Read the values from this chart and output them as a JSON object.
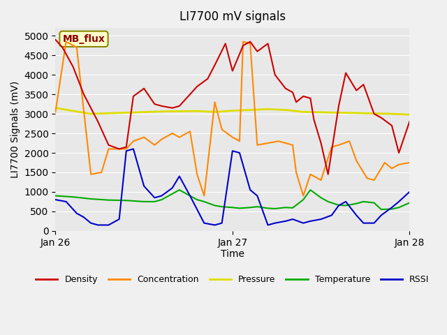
{
  "title": "LI7700 mV signals",
  "ylabel": "LI7700 Signals (mV)",
  "xlabel": "Time",
  "annotation": "MB_flux",
  "ylim": [
    0,
    5200
  ],
  "yticks": [
    0,
    500,
    1000,
    1500,
    2000,
    2500,
    3000,
    3500,
    4000,
    4500,
    5000
  ],
  "xtick_labels": [
    "Jan 26",
    "Jan 27",
    "Jan 28"
  ],
  "bg_color": "#e8e8e8",
  "legend_items": [
    {
      "label": "Density",
      "color": "#cc0000"
    },
    {
      "label": "Concentration",
      "color": "#ff8800"
    },
    {
      "label": "Pressure",
      "color": "#dddd00"
    },
    {
      "label": "Temperature",
      "color": "#00aa00"
    },
    {
      "label": "RSSI",
      "color": "#0000cc"
    }
  ],
  "density_x": [
    0,
    0.02,
    0.05,
    0.08,
    0.12,
    0.15,
    0.18,
    0.2,
    0.22,
    0.25,
    0.28,
    0.3,
    0.33,
    0.35,
    0.38,
    0.4,
    0.43,
    0.45,
    0.48,
    0.5,
    0.53,
    0.55,
    0.57,
    0.6,
    0.62,
    0.65,
    0.67,
    0.68,
    0.7,
    0.72,
    0.73,
    0.75,
    0.77,
    0.8,
    0.82,
    0.85,
    0.87,
    0.9,
    0.92,
    0.95,
    0.97,
    1.0
  ],
  "density_y": [
    4900,
    4700,
    4200,
    3500,
    2800,
    2200,
    2100,
    2150,
    3450,
    3650,
    3250,
    3200,
    3150,
    3200,
    3500,
    3700,
    3900,
    4250,
    4800,
    4100,
    4750,
    4850,
    4600,
    4800,
    4000,
    3650,
    3550,
    3300,
    3450,
    3400,
    2850,
    2250,
    1450,
    3200,
    4050,
    3600,
    3750,
    3000,
    2900,
    2700,
    2000,
    2800
  ],
  "concentration_x": [
    0,
    0.03,
    0.06,
    0.1,
    0.13,
    0.15,
    0.18,
    0.2,
    0.22,
    0.25,
    0.28,
    0.3,
    0.33,
    0.35,
    0.38,
    0.4,
    0.42,
    0.45,
    0.47,
    0.5,
    0.52,
    0.53,
    0.55,
    0.57,
    0.6,
    0.63,
    0.65,
    0.67,
    0.68,
    0.7,
    0.72,
    0.75,
    0.78,
    0.8,
    0.83,
    0.85,
    0.88,
    0.9,
    0.93,
    0.95,
    0.97,
    1.0
  ],
  "concentration_y": [
    3050,
    4850,
    4700,
    1450,
    1500,
    2100,
    2100,
    2100,
    2300,
    2400,
    2200,
    2350,
    2500,
    2400,
    2550,
    1450,
    900,
    3300,
    2600,
    2400,
    2300,
    4850,
    4800,
    2200,
    2250,
    2300,
    2250,
    2200,
    1500,
    900,
    1450,
    1300,
    2150,
    2200,
    2300,
    1800,
    1350,
    1300,
    1750,
    1600,
    1700,
    1750
  ],
  "pressure_x": [
    0,
    0.1,
    0.2,
    0.3,
    0.4,
    0.45,
    0.5,
    0.55,
    0.6,
    0.65,
    0.7,
    0.75,
    0.8,
    0.85,
    0.9,
    0.95,
    1.0
  ],
  "pressure_y": [
    3150,
    3000,
    3030,
    3060,
    3070,
    3050,
    3080,
    3100,
    3120,
    3100,
    3050,
    3040,
    3030,
    3020,
    3010,
    3000,
    2980
  ],
  "temperature_x": [
    0,
    0.05,
    0.1,
    0.15,
    0.2,
    0.25,
    0.28,
    0.3,
    0.35,
    0.38,
    0.4,
    0.42,
    0.45,
    0.47,
    0.5,
    0.52,
    0.55,
    0.57,
    0.6,
    0.62,
    0.65,
    0.67,
    0.7,
    0.72,
    0.75,
    0.77,
    0.8,
    0.82,
    0.85,
    0.87,
    0.9,
    0.92,
    0.95,
    0.97,
    1.0
  ],
  "temperature_y": [
    900,
    870,
    820,
    790,
    780,
    750,
    750,
    800,
    1050,
    900,
    800,
    750,
    650,
    620,
    600,
    580,
    600,
    620,
    580,
    570,
    600,
    590,
    800,
    1050,
    850,
    750,
    660,
    650,
    700,
    750,
    720,
    550,
    560,
    600,
    720
  ],
  "rssi_x": [
    0,
    0.03,
    0.06,
    0.08,
    0.1,
    0.12,
    0.15,
    0.18,
    0.2,
    0.22,
    0.25,
    0.28,
    0.3,
    0.33,
    0.35,
    0.38,
    0.4,
    0.42,
    0.45,
    0.47,
    0.5,
    0.52,
    0.55,
    0.57,
    0.6,
    0.62,
    0.65,
    0.67,
    0.7,
    0.72,
    0.75,
    0.78,
    0.8,
    0.82,
    0.85,
    0.87,
    0.9,
    0.92,
    0.95,
    0.97,
    1.0
  ],
  "rssi_y": [
    800,
    750,
    450,
    350,
    200,
    150,
    150,
    300,
    2050,
    2100,
    1150,
    850,
    900,
    1100,
    1400,
    900,
    550,
    200,
    150,
    200,
    2050,
    2000,
    1050,
    900,
    150,
    200,
    250,
    300,
    200,
    250,
    300,
    400,
    650,
    750,
    400,
    200,
    200,
    400,
    600,
    750,
    1000
  ]
}
